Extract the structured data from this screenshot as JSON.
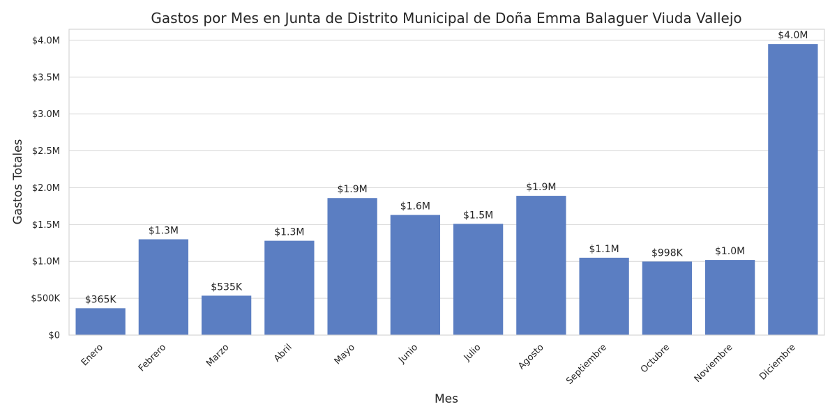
{
  "chart_data": {
    "type": "bar",
    "title": "Gastos por Mes en Junta de Distrito Municipal de Doña Emma Balaguer Viuda Vallejo",
    "xlabel": "Mes",
    "ylabel": "Gastos Totales",
    "categories": [
      "Enero",
      "Febrero",
      "Marzo",
      "Abril",
      "Mayo",
      "Junio",
      "Julio",
      "Agosto",
      "Septiembre",
      "Octubre",
      "Noviembre",
      "Diciembre"
    ],
    "values": [
      365000,
      1300000,
      535000,
      1280000,
      1860000,
      1630000,
      1510000,
      1890000,
      1050000,
      998000,
      1020000,
      3950000
    ],
    "data_labels": [
      "$365K",
      "$1.3M",
      "$535K",
      "$1.3M",
      "$1.9M",
      "$1.6M",
      "$1.5M",
      "$1.9M",
      "$1.1M",
      "$998K",
      "$1.0M",
      "$4.0M"
    ],
    "ylim": [
      0,
      4150000
    ],
    "yticks": [
      0,
      500000,
      1000000,
      1500000,
      2000000,
      2500000,
      3000000,
      3500000,
      4000000
    ],
    "ytick_labels": [
      "$0",
      "$500K",
      "$1.0M",
      "$1.5M",
      "$2.0M",
      "$2.5M",
      "$3.0M",
      "$3.5M",
      "$4.0M"
    ],
    "grid": "horizontal",
    "bar_color": "#5b7ec2",
    "grid_color": "#d6d6d6"
  }
}
